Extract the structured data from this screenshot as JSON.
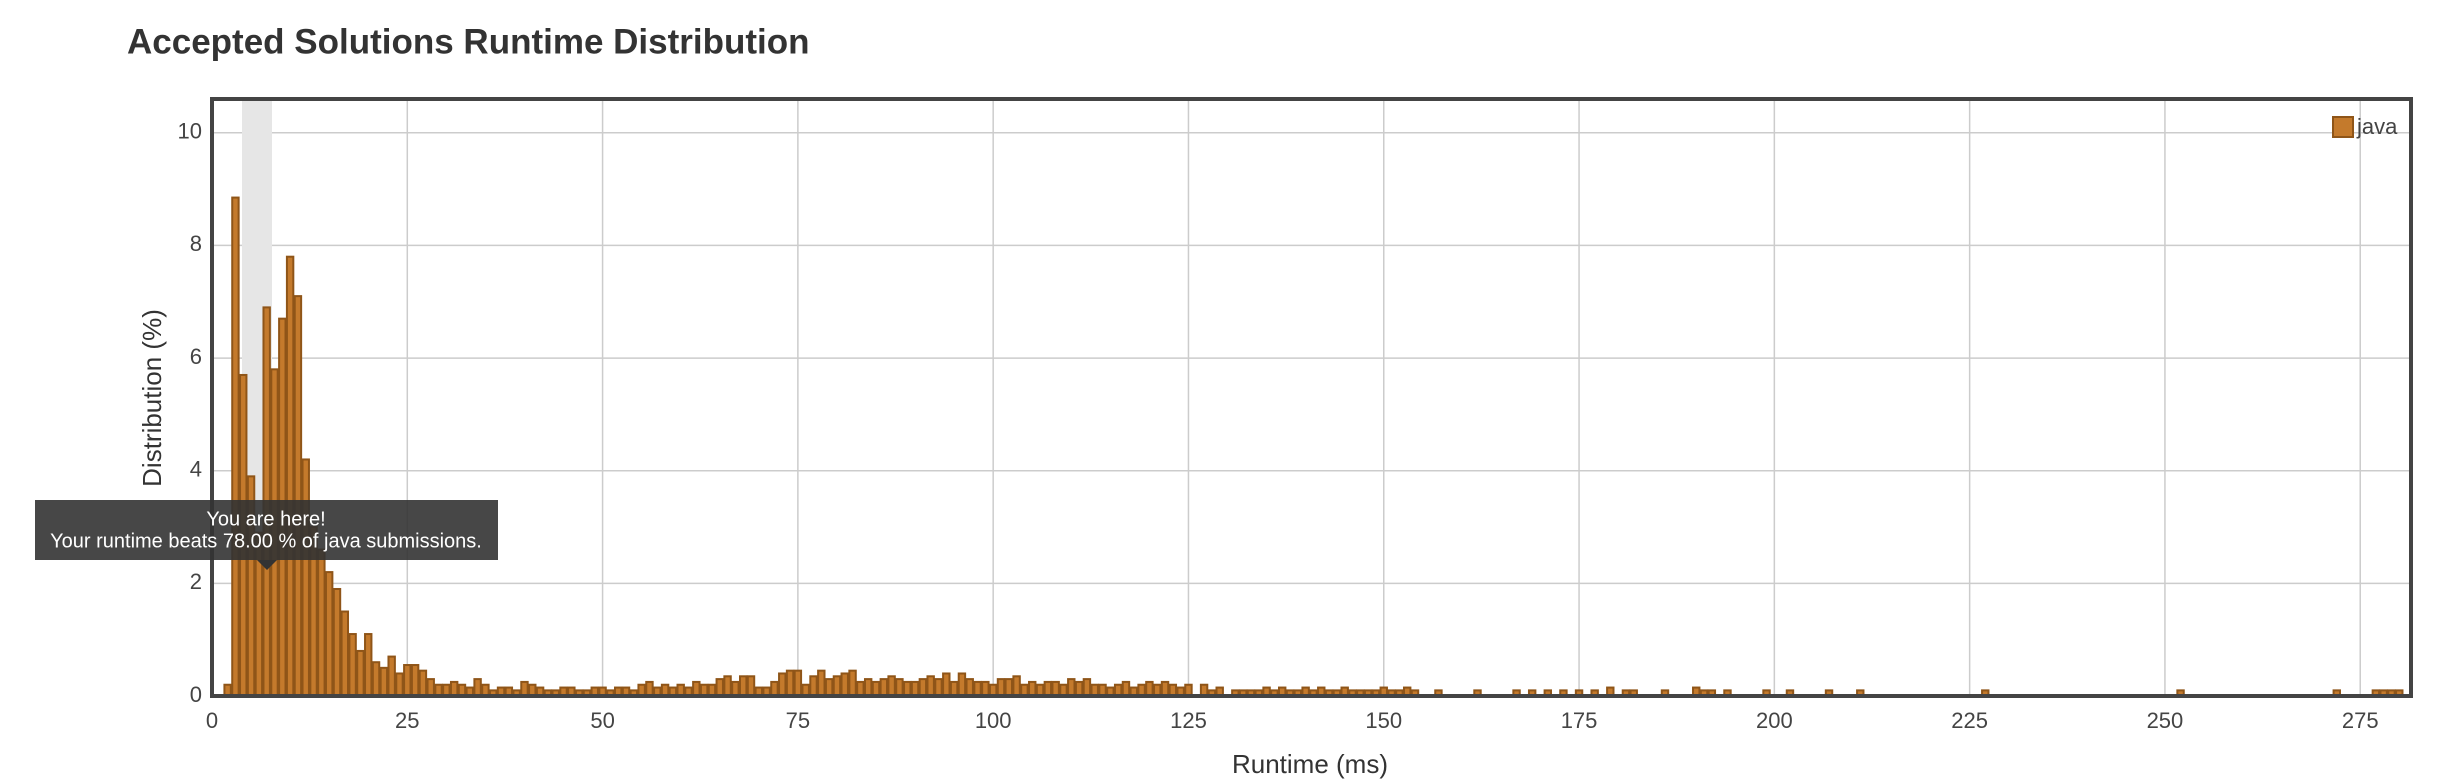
{
  "chart_data": {
    "type": "histogram",
    "title": "Accepted Solutions Runtime Distribution",
    "x_label": "Runtime (ms)",
    "y_label": "Distribution (%)",
    "tooltip": [
      "You are here!",
      "Your runtime beats 78.00 % of java submissions."
    ],
    "series": [
      {
        "name": "java",
        "color": "#c47a2c",
        "x": [
          2,
          3,
          4,
          5,
          6,
          7,
          8,
          9,
          10,
          11,
          12,
          13,
          14,
          15,
          16,
          17,
          18,
          19,
          20,
          21,
          22,
          23,
          24,
          25,
          26,
          27,
          28,
          29,
          30,
          31,
          32,
          33,
          34,
          35,
          36,
          37,
          38,
          39,
          40,
          41,
          42,
          43,
          44,
          45,
          46,
          47,
          48,
          49,
          50,
          51,
          52,
          53,
          54,
          55,
          56,
          57,
          58,
          59,
          60,
          61,
          62,
          63,
          64,
          65,
          66,
          67,
          68,
          69,
          70,
          71,
          72,
          73,
          74,
          75,
          76,
          77,
          78,
          79,
          80,
          81,
          82,
          83,
          84,
          85,
          86,
          87,
          88,
          89,
          90,
          91,
          92,
          93,
          94,
          95,
          96,
          97,
          98,
          99,
          100,
          101,
          102,
          103,
          104,
          105,
          106,
          107,
          108,
          109,
          110,
          111,
          112,
          113,
          114,
          115,
          116,
          117,
          118,
          119,
          120,
          121,
          122,
          123,
          124,
          125,
          127,
          128,
          129,
          131,
          132,
          133,
          134,
          135,
          136,
          137,
          138,
          139,
          140,
          141,
          142,
          143,
          144,
          145,
          146,
          147,
          148,
          149,
          150,
          151,
          152,
          153,
          154,
          157,
          162,
          167,
          169,
          171,
          173,
          175,
          177,
          179,
          181,
          182,
          186,
          190,
          191,
          192,
          194,
          199,
          202,
          207,
          211,
          227,
          252,
          272,
          277,
          278,
          279,
          280
        ],
        "values": [
          0.2,
          8.85,
          5.7,
          3.9,
          2.9,
          6.9,
          5.8,
          6.7,
          7.8,
          7.1,
          4.2,
          3.0,
          2.6,
          2.2,
          1.9,
          1.5,
          1.1,
          0.8,
          1.1,
          0.6,
          0.5,
          0.7,
          0.4,
          0.55,
          0.55,
          0.45,
          0.3,
          0.2,
          0.2,
          0.25,
          0.2,
          0.15,
          0.3,
          0.2,
          0.1,
          0.15,
          0.15,
          0.1,
          0.25,
          0.2,
          0.15,
          0.1,
          0.1,
          0.15,
          0.15,
          0.1,
          0.1,
          0.15,
          0.15,
          0.1,
          0.15,
          0.15,
          0.1,
          0.2,
          0.25,
          0.15,
          0.2,
          0.15,
          0.2,
          0.15,
          0.25,
          0.2,
          0.2,
          0.3,
          0.35,
          0.25,
          0.35,
          0.35,
          0.15,
          0.15,
          0.25,
          0.4,
          0.45,
          0.45,
          0.2,
          0.35,
          0.45,
          0.3,
          0.35,
          0.4,
          0.45,
          0.25,
          0.3,
          0.25,
          0.3,
          0.35,
          0.3,
          0.25,
          0.25,
          0.3,
          0.35,
          0.3,
          0.4,
          0.25,
          0.4,
          0.3,
          0.25,
          0.25,
          0.2,
          0.3,
          0.3,
          0.35,
          0.2,
          0.25,
          0.2,
          0.25,
          0.25,
          0.2,
          0.3,
          0.25,
          0.3,
          0.2,
          0.2,
          0.15,
          0.2,
          0.25,
          0.15,
          0.2,
          0.25,
          0.2,
          0.25,
          0.2,
          0.15,
          0.2,
          0.2,
          0.1,
          0.15,
          0.1,
          0.1,
          0.1,
          0.1,
          0.15,
          0.1,
          0.15,
          0.1,
          0.1,
          0.15,
          0.1,
          0.15,
          0.1,
          0.1,
          0.15,
          0.1,
          0.1,
          0.1,
          0.1,
          0.15,
          0.1,
          0.1,
          0.15,
          0.1,
          0.1,
          0.1,
          0.1,
          0.1,
          0.1,
          0.1,
          0.1,
          0.1,
          0.15,
          0.1,
          0.1,
          0.1,
          0.15,
          0.1,
          0.1,
          0.1,
          0.1,
          0.1,
          0.1,
          0.1,
          0.1,
          0.1,
          0.1,
          0.1,
          0.1,
          0.1,
          0.1
        ]
      }
    ],
    "xlim": [
      0,
      281.5
    ],
    "ylim": [
      0,
      10.6
    ],
    "xticks": [
      0,
      25,
      50,
      75,
      100,
      125,
      150,
      175,
      200,
      225,
      250,
      275
    ],
    "yticks": [
      0,
      2,
      4,
      6,
      8,
      10
    ],
    "grid": true,
    "legend": "upper right"
  }
}
